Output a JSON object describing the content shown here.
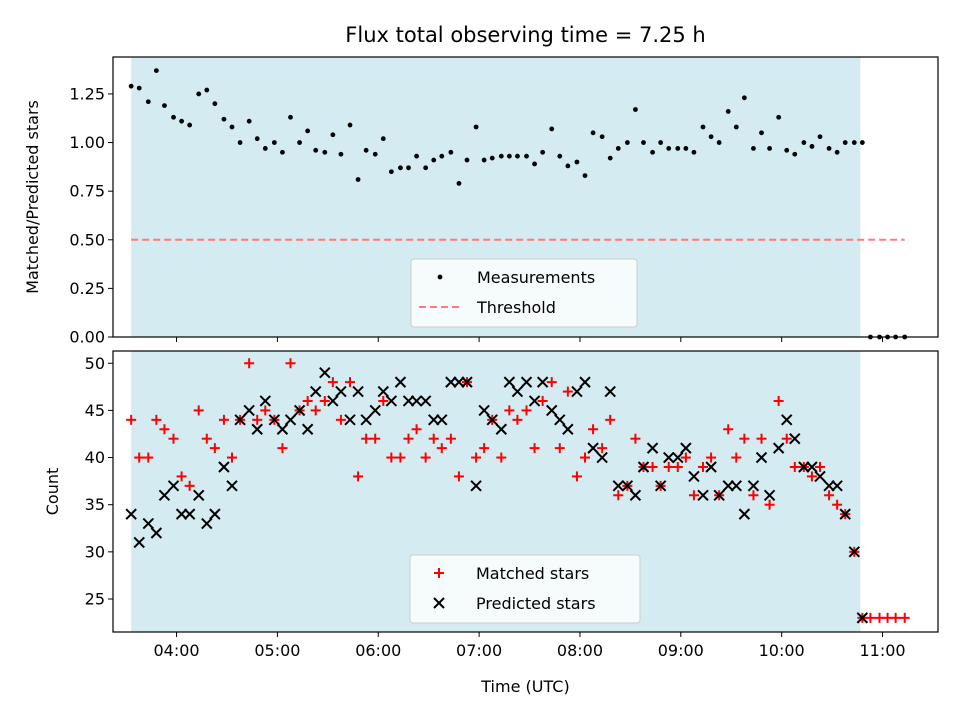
{
  "chart_data": [
    {
      "type": "scatter",
      "title": "Flux total observing time = 7.25 h",
      "xlabel": "",
      "ylabel": "Matched/Predicted stars",
      "xlim": [
        3.37,
        11.55
      ],
      "ylim": [
        0.0,
        1.44
      ],
      "yticks": [
        0.0,
        0.25,
        0.5,
        0.75,
        1.0,
        1.25
      ],
      "ytick_labels": [
        "0.00",
        "0.25",
        "0.50",
        "0.75",
        "1.00",
        "1.25"
      ],
      "xticks": [
        4,
        5,
        6,
        7,
        8,
        9,
        10,
        11
      ],
      "shaded_span": {
        "x": [
          3.55,
          10.78
        ],
        "color": "#d3ebf1"
      },
      "legend": {
        "placement": "lower-center"
      },
      "series": [
        {
          "name": "Measurements",
          "marker": "dot",
          "color": "#000000",
          "x": [
            3.55,
            3.63,
            3.72,
            3.8,
            3.88,
            3.97,
            4.05,
            4.13,
            4.22,
            4.3,
            4.38,
            4.47,
            4.55,
            4.63,
            4.72,
            4.8,
            4.88,
            4.97,
            5.05,
            5.13,
            5.22,
            5.3,
            5.38,
            5.47,
            5.55,
            5.63,
            5.72,
            5.8,
            5.88,
            5.97,
            6.05,
            6.13,
            6.22,
            6.3,
            6.38,
            6.47,
            6.55,
            6.63,
            6.72,
            6.8,
            6.88,
            6.97,
            7.05,
            7.13,
            7.22,
            7.3,
            7.38,
            7.47,
            7.55,
            7.63,
            7.72,
            7.8,
            7.88,
            7.97,
            8.05,
            8.13,
            8.22,
            8.3,
            8.38,
            8.47,
            8.55,
            8.63,
            8.72,
            8.8,
            8.88,
            8.97,
            9.05,
            9.13,
            9.22,
            9.3,
            9.38,
            9.47,
            9.55,
            9.63,
            9.72,
            9.8,
            9.88,
            9.97,
            10.05,
            10.13,
            10.22,
            10.3,
            10.38,
            10.47,
            10.55,
            10.63,
            10.72,
            10.8,
            10.88,
            10.97,
            11.05,
            11.13,
            11.22
          ],
          "y": [
            1.29,
            1.28,
            1.21,
            1.37,
            1.19,
            1.13,
            1.11,
            1.09,
            1.25,
            1.27,
            1.2,
            1.12,
            1.08,
            1.0,
            1.11,
            1.02,
            0.97,
            1.0,
            0.95,
            1.13,
            1.0,
            1.06,
            0.96,
            0.95,
            1.04,
            0.94,
            1.09,
            0.81,
            0.96,
            0.94,
            1.02,
            0.85,
            0.87,
            0.87,
            0.93,
            0.87,
            0.91,
            0.93,
            0.95,
            0.79,
            0.91,
            1.08,
            0.91,
            0.92,
            0.93,
            0.93,
            0.93,
            0.93,
            0.89,
            0.95,
            1.07,
            0.93,
            0.88,
            0.9,
            0.83,
            1.05,
            1.03,
            0.92,
            0.97,
            1.0,
            1.17,
            1.0,
            0.95,
            1.0,
            0.97,
            0.97,
            0.97,
            0.95,
            1.08,
            1.03,
            1.0,
            1.16,
            1.08,
            1.23,
            0.97,
            1.05,
            0.97,
            1.13,
            0.96,
            0.94,
            1.0,
            0.98,
            1.03,
            0.97,
            0.95,
            1.0,
            1.0,
            1.0,
            0.0,
            0.0,
            0.0,
            0.0,
            0.0
          ]
        },
        {
          "name": "Threshold",
          "marker": "dashed-line",
          "color": "#ff7b7b",
          "x": [
            3.55,
            11.22
          ],
          "y": [
            0.5,
            0.5
          ]
        }
      ]
    },
    {
      "type": "scatter",
      "title": "",
      "xlabel": "Time (UTC)",
      "ylabel": "Count",
      "xlim": [
        3.37,
        11.55
      ],
      "ylim": [
        21.5,
        51.3
      ],
      "yticks": [
        25,
        30,
        35,
        40,
        45,
        50
      ],
      "ytick_labels": [
        "25",
        "30",
        "35",
        "40",
        "45",
        "50"
      ],
      "xticks": [
        4,
        5,
        6,
        7,
        8,
        9,
        10,
        11
      ],
      "xtick_labels": [
        "04:00",
        "05:00",
        "06:00",
        "07:00",
        "08:00",
        "09:00",
        "10:00",
        "11:00"
      ],
      "shaded_span": {
        "x": [
          3.55,
          10.78
        ],
        "color": "#d3ebf1"
      },
      "legend": {
        "placement": "lower-center"
      },
      "series": [
        {
          "name": "Matched stars",
          "marker": "plus",
          "color": "#ff0000",
          "x": [
            3.55,
            3.63,
            3.72,
            3.8,
            3.88,
            3.97,
            4.05,
            4.13,
            4.22,
            4.3,
            4.38,
            4.47,
            4.55,
            4.63,
            4.72,
            4.8,
            4.88,
            4.97,
            5.05,
            5.13,
            5.22,
            5.3,
            5.38,
            5.47,
            5.55,
            5.63,
            5.72,
            5.8,
            5.88,
            5.97,
            6.05,
            6.13,
            6.22,
            6.3,
            6.38,
            6.47,
            6.55,
            6.63,
            6.72,
            6.8,
            6.88,
            6.97,
            7.05,
            7.13,
            7.22,
            7.3,
            7.38,
            7.47,
            7.55,
            7.63,
            7.72,
            7.8,
            7.88,
            7.97,
            8.05,
            8.13,
            8.22,
            8.3,
            8.38,
            8.47,
            8.55,
            8.63,
            8.72,
            8.8,
            8.88,
            8.97,
            9.05,
            9.13,
            9.22,
            9.3,
            9.38,
            9.47,
            9.55,
            9.63,
            9.72,
            9.8,
            9.88,
            9.97,
            10.05,
            10.13,
            10.22,
            10.3,
            10.38,
            10.47,
            10.55,
            10.63,
            10.72,
            10.8,
            10.88,
            10.97,
            11.05,
            11.13,
            11.22
          ],
          "y": [
            44,
            40,
            40,
            44,
            43,
            42,
            38,
            37,
            45,
            42,
            41,
            44,
            40,
            44,
            50,
            44,
            45,
            44,
            41,
            50,
            45,
            46,
            45,
            46,
            48,
            44,
            48,
            38,
            42,
            42,
            46,
            40,
            40,
            42,
            43,
            40,
            42,
            41,
            42,
            38,
            48,
            40,
            41,
            44,
            40,
            45,
            44,
            45,
            41,
            46,
            48,
            41,
            47,
            38,
            40,
            43,
            41,
            44,
            36,
            37,
            42,
            39,
            39,
            37,
            39,
            39,
            40,
            36,
            39,
            40,
            36,
            43,
            40,
            42,
            36,
            42,
            35,
            46,
            42,
            39,
            39,
            38,
            39,
            36,
            35,
            34,
            30,
            23,
            23,
            23,
            23,
            23,
            23
          ]
        },
        {
          "name": "Predicted stars",
          "marker": "x",
          "color": "#000000",
          "x": [
            3.55,
            3.63,
            3.72,
            3.8,
            3.88,
            3.97,
            4.05,
            4.13,
            4.22,
            4.3,
            4.38,
            4.47,
            4.55,
            4.63,
            4.72,
            4.8,
            4.88,
            4.97,
            5.05,
            5.13,
            5.22,
            5.3,
            5.38,
            5.47,
            5.55,
            5.63,
            5.72,
            5.8,
            5.88,
            5.97,
            6.05,
            6.13,
            6.22,
            6.3,
            6.38,
            6.47,
            6.55,
            6.63,
            6.72,
            6.8,
            6.88,
            6.97,
            7.05,
            7.13,
            7.22,
            7.3,
            7.38,
            7.47,
            7.55,
            7.63,
            7.72,
            7.8,
            7.88,
            7.97,
            8.05,
            8.13,
            8.22,
            8.3,
            8.38,
            8.47,
            8.55,
            8.63,
            8.72,
            8.8,
            8.88,
            8.97,
            9.05,
            9.13,
            9.22,
            9.3,
            9.38,
            9.47,
            9.55,
            9.63,
            9.72,
            9.8,
            9.88,
            9.97,
            10.05,
            10.13,
            10.22,
            10.3,
            10.38,
            10.47,
            10.55,
            10.63,
            10.72,
            10.8
          ],
          "y": [
            34,
            31,
            33,
            32,
            36,
            37,
            34,
            34,
            36,
            33,
            34,
            39,
            37,
            44,
            45,
            43,
            46,
            44,
            43,
            44,
            45,
            43,
            47,
            49,
            46,
            47,
            44,
            47,
            44,
            45,
            47,
            46,
            48,
            46,
            46,
            46,
            44,
            44,
            48,
            48,
            48,
            37,
            45,
            44,
            43,
            48,
            47,
            48,
            46,
            48,
            45,
            44,
            43,
            47,
            48,
            41,
            40,
            47,
            37,
            37,
            36,
            39,
            41,
            37,
            40,
            40,
            41,
            38,
            36,
            39,
            36,
            37,
            37,
            34,
            37,
            40,
            36,
            41,
            44,
            42,
            39,
            39,
            38,
            37,
            37,
            34,
            30,
            23
          ]
        }
      ]
    }
  ]
}
